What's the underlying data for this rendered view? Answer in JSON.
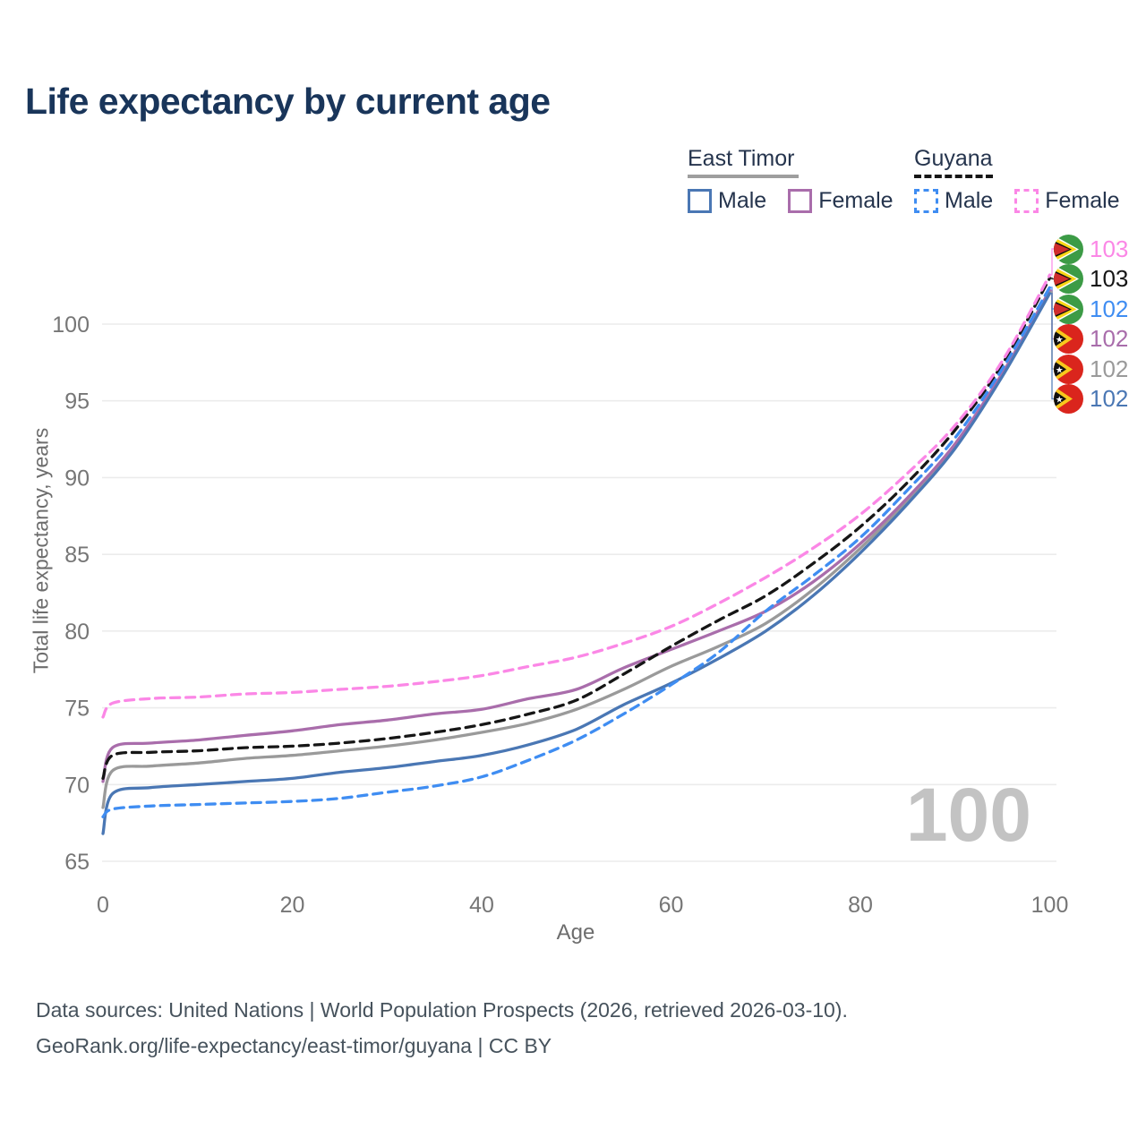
{
  "title": "Life expectancy by current age",
  "watermark_age": "100",
  "colors": {
    "title_text": "#19355a",
    "legend_text": "#25344d",
    "tick_text": "#767676",
    "axis_title_text": "#6d6d6d",
    "grid": "#ececec",
    "footer_text": "#46525c",
    "watermark": "#c3c3c3"
  },
  "legend": {
    "groups": [
      {
        "label": "East Timor",
        "line": {
          "color": "#9e9e9e",
          "dash": "solid"
        },
        "items": [
          {
            "label": "Male",
            "color": "#4a77b4",
            "dash": "solid"
          },
          {
            "label": "Female",
            "color": "#a96dab",
            "dash": "solid"
          }
        ]
      },
      {
        "label": "Guyana",
        "line": {
          "color": "#161616",
          "dash": "dashed"
        },
        "items": [
          {
            "label": "Male",
            "color": "#3f8df2",
            "dash": "dashed"
          },
          {
            "label": "Female",
            "color": "#fb87e6",
            "dash": "dashed"
          }
        ]
      }
    ]
  },
  "chart_data": {
    "type": "line",
    "title": "Life expectancy by current age",
    "xlabel": "Age",
    "ylabel": "Total life expectancy, years",
    "xlim": [
      0,
      100
    ],
    "ylim": [
      65,
      103.5
    ],
    "xticks": [
      0,
      20,
      40,
      60,
      80,
      100
    ],
    "yticks": [
      65,
      70,
      75,
      80,
      85,
      90,
      95,
      100
    ],
    "grid": "horizontal",
    "legend_position": "top-right",
    "x": [
      0,
      1,
      5,
      10,
      15,
      20,
      25,
      30,
      35,
      40,
      45,
      50,
      55,
      60,
      65,
      70,
      75,
      80,
      85,
      90,
      95,
      100
    ],
    "series": [
      {
        "id": "et-both",
        "name": "East Timor",
        "country": "east-timor",
        "sex": "both",
        "color": "#9a9a9a",
        "dash": "solid",
        "values": [
          68.5,
          70.9,
          71.2,
          71.4,
          71.7,
          71.9,
          72.2,
          72.5,
          72.9,
          73.4,
          74.0,
          74.9,
          76.2,
          77.7,
          79.0,
          80.5,
          82.7,
          85.4,
          88.5,
          92.1,
          96.7,
          102.1
        ]
      },
      {
        "id": "et-female",
        "name": "East Timor Female",
        "country": "east-timor",
        "sex": "female",
        "color": "#a96dab",
        "dash": "solid",
        "values": [
          70.2,
          72.4,
          72.7,
          72.9,
          73.2,
          73.5,
          73.9,
          74.2,
          74.6,
          74.9,
          75.6,
          76.2,
          77.6,
          78.8,
          80.0,
          81.3,
          83.2,
          85.7,
          88.7,
          92.2,
          96.8,
          102.2
        ]
      },
      {
        "id": "et-male",
        "name": "East Timor Male",
        "country": "east-timor",
        "sex": "male",
        "color": "#4a77b4",
        "dash": "solid",
        "values": [
          66.8,
          69.4,
          69.8,
          70.0,
          70.2,
          70.4,
          70.8,
          71.1,
          71.5,
          71.9,
          72.6,
          73.6,
          75.2,
          76.6,
          78.2,
          80.0,
          82.3,
          85.1,
          88.3,
          91.9,
          96.6,
          102.0
        ]
      },
      {
        "id": "gy-both",
        "name": "Guyana",
        "country": "guyana",
        "sex": "both",
        "color": "#161616",
        "dash": "dashed",
        "values": [
          70.4,
          71.9,
          72.1,
          72.2,
          72.4,
          72.5,
          72.7,
          73.0,
          73.4,
          73.9,
          74.6,
          75.5,
          77.2,
          79.0,
          80.7,
          82.3,
          84.4,
          86.8,
          89.7,
          93.1,
          97.4,
          103.0
        ]
      },
      {
        "id": "gy-male",
        "name": "Guyana Male",
        "country": "guyana",
        "sex": "male",
        "color": "#3f8df2",
        "dash": "dashed",
        "values": [
          67.9,
          68.4,
          68.6,
          68.7,
          68.8,
          68.9,
          69.1,
          69.5,
          69.9,
          70.5,
          71.6,
          72.9,
          74.6,
          76.5,
          78.6,
          81.3,
          83.6,
          86.1,
          89.2,
          92.6,
          97.1,
          102.4
        ]
      },
      {
        "id": "gy-female",
        "name": "Guyana Female",
        "country": "guyana",
        "sex": "female",
        "color": "#fb87e6",
        "dash": "dashed",
        "values": [
          74.4,
          75.3,
          75.6,
          75.7,
          75.9,
          76.0,
          76.2,
          76.4,
          76.7,
          77.1,
          77.7,
          78.3,
          79.2,
          80.3,
          81.8,
          83.5,
          85.4,
          87.6,
          90.3,
          93.4,
          97.6,
          103.2
        ]
      }
    ],
    "end_labels": [
      {
        "series_id": "gy-female",
        "flag": "guyana-flag-icon",
        "value": "103"
      },
      {
        "series_id": "gy-both",
        "flag": "guyana-flag-icon",
        "value": "103"
      },
      {
        "series_id": "gy-male",
        "flag": "guyana-flag-icon",
        "value": "102"
      },
      {
        "series_id": "et-female",
        "flag": "east-timor-flag-icon",
        "value": "102"
      },
      {
        "series_id": "et-both",
        "flag": "east-timor-flag-icon",
        "value": "102"
      },
      {
        "series_id": "et-male",
        "flag": "east-timor-flag-icon",
        "value": "102"
      }
    ]
  },
  "footer": {
    "line1": "Data sources: United Nations | World Population Prospects (2026, retrieved 2026-03-10).",
    "line2": "GeoRank.org/life-expectancy/east-timor/guyana | CC BY"
  }
}
